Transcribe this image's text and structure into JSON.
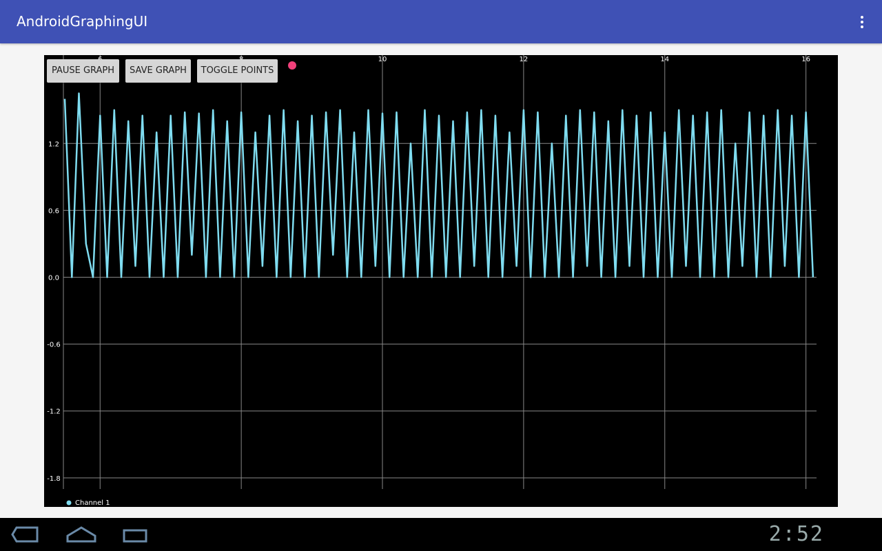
{
  "app_bar": {
    "title": "AndroidGraphingUI"
  },
  "buttons": [
    "PAUSE GRAPH",
    "SAVE GRAPH",
    "TOGGLE POINTS"
  ],
  "status_bar": {
    "time": "2:52"
  },
  "chart_data": {
    "type": "line",
    "x": [
      5.5,
      5.6,
      5.7,
      5.8,
      5.9,
      6.0,
      6.1,
      6.2,
      6.3,
      6.4,
      6.5,
      6.6,
      6.7,
      6.8,
      6.9,
      7.0,
      7.1,
      7.2,
      7.3,
      7.4,
      7.5,
      7.6,
      7.7,
      7.8,
      7.9,
      8.0,
      8.1,
      8.2,
      8.3,
      8.4,
      8.5,
      8.6,
      8.7,
      8.8,
      8.9,
      9.0,
      9.1,
      9.2,
      9.3,
      9.4,
      9.5,
      9.6,
      9.7,
      9.8,
      9.9,
      10.0,
      10.1,
      10.2,
      10.3,
      10.4,
      10.5,
      10.6,
      10.7,
      10.8,
      10.9,
      11.0,
      11.1,
      11.2,
      11.3,
      11.4,
      11.5,
      11.6,
      11.7,
      11.8,
      11.9,
      12.0,
      12.1,
      12.2,
      12.3,
      12.4,
      12.5,
      12.6,
      12.7,
      12.8,
      12.9,
      13.0,
      13.1,
      13.2,
      13.3,
      13.4,
      13.5,
      13.6,
      13.7,
      13.8,
      13.9,
      14.0,
      14.1,
      14.2,
      14.3,
      14.4,
      14.5,
      14.6,
      14.7,
      14.8,
      14.9,
      15.0,
      15.1,
      15.2,
      15.3,
      15.4,
      15.5,
      15.6,
      15.7,
      15.8,
      15.9,
      16.0,
      16.1
    ],
    "series": [
      {
        "name": "Channel 1",
        "color": "#7fdcf0",
        "values": [
          1.6,
          0,
          1.65,
          0.3,
          0,
          1.45,
          0,
          1.5,
          0,
          1.4,
          0.1,
          1.45,
          0,
          1.3,
          0,
          1.45,
          0,
          1.48,
          0.2,
          1.47,
          0,
          1.5,
          0,
          1.4,
          0,
          1.48,
          0,
          1.3,
          0.1,
          1.45,
          0,
          1.5,
          0,
          1.4,
          0,
          1.45,
          0,
          1.48,
          0.2,
          1.5,
          0,
          1.3,
          0,
          1.5,
          0.1,
          1.47,
          0,
          1.48,
          0,
          1.2,
          0,
          1.5,
          0,
          1.45,
          0,
          1.4,
          0,
          1.48,
          0.1,
          1.5,
          0,
          1.45,
          0,
          1.3,
          0.1,
          1.5,
          0,
          1.48,
          0,
          1.2,
          0,
          1.45,
          0,
          1.5,
          0.1,
          1.48,
          0,
          1.4,
          0,
          1.5,
          0.1,
          1.45,
          0,
          1.48,
          0,
          1.3,
          0,
          1.5,
          0.1,
          1.45,
          0,
          1.48,
          0,
          1.5,
          0,
          1.2,
          0.1,
          1.48,
          0,
          1.45,
          0,
          1.5,
          0.1,
          1.45,
          0,
          1.48,
          0
        ]
      }
    ],
    "xlim": [
      5.48,
      16.15
    ],
    "ylim": [
      -1.9,
      1.9
    ],
    "xticks": [
      6,
      8,
      10,
      12,
      14,
      16
    ],
    "yticks": [
      1.2,
      0.6,
      {
        "value": 0,
        "label": "0.0"
      },
      -0.6,
      -1.2,
      -1.8
    ],
    "grid": true
  }
}
